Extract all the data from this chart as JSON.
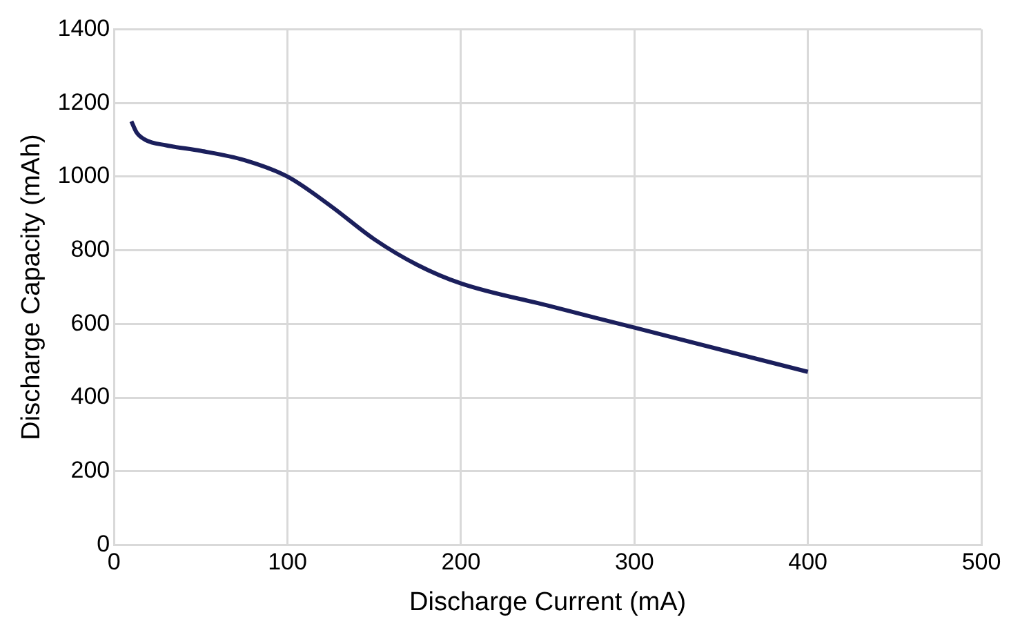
{
  "chart_data": {
    "type": "line",
    "xlabel": "Discharge Current (mA)",
    "ylabel": "Discharge Capacity (mAh)",
    "xlim": [
      0,
      500
    ],
    "xticks": [
      0,
      100,
      200,
      300,
      400,
      500
    ],
    "ylim": [
      0,
      1400
    ],
    "yticks": [
      0,
      200,
      400,
      600,
      800,
      1000,
      1200,
      1400
    ],
    "grid": true,
    "series": [
      {
        "color": "#1b1f5c",
        "x": [
          10,
          13,
          18,
          30,
          50,
          75,
          100,
          125,
          150,
          175,
          200,
          250,
          300,
          350,
          400
        ],
        "values": [
          1150,
          1120,
          1100,
          1085,
          1070,
          1045,
          1000,
          920,
          830,
          760,
          710,
          650,
          590,
          530,
          470
        ]
      }
    ]
  }
}
